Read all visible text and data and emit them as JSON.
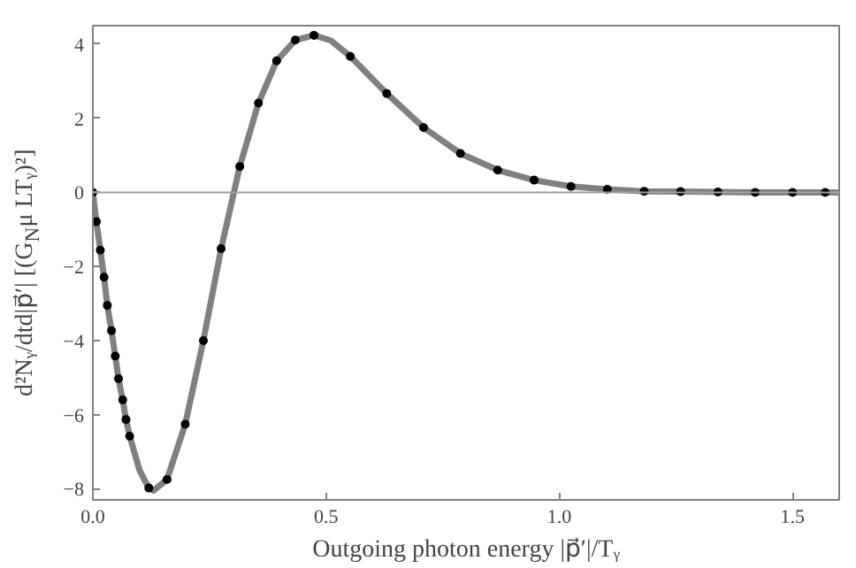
{
  "chart_data": {
    "type": "line",
    "xlabel": "Outgoing photon energy |p⃗′|/Tᵧ",
    "ylabel": "d²Nᵧ/dtd|p⃗′|   [(G$_{N}$μ LTᵧ)²]",
    "xlim": [
      0,
      1.6
    ],
    "ylim": [
      -8.3,
      4.5
    ],
    "xticks": [
      {
        "value": 0,
        "label": "0.0"
      },
      0.5,
      {
        "value": 1,
        "label": "1.0"
      },
      1.5
    ],
    "yticks": [
      -8,
      -6,
      -4,
      -2,
      0,
      2,
      4
    ],
    "grid": false,
    "ref_lines": [
      {
        "axis": "y",
        "value": 0,
        "label": null,
        "color": "#a0a0a0"
      }
    ],
    "series": [
      {
        "type": "line",
        "color": "#808080",
        "marker": "none",
        "line_style": "solid",
        "x": [
          0,
          0.0075,
          0.016,
          0.024,
          0.031,
          0.04,
          0.048,
          0.055,
          0.064,
          0.071,
          0.079,
          0.1,
          0.12,
          0.13,
          0.159,
          0.198,
          0.237,
          0.275,
          0.315,
          0.355,
          0.394,
          0.434,
          0.474,
          0.51,
          0.552,
          0.63,
          0.709,
          0.788,
          0.868,
          0.946,
          1.025,
          1.103,
          1.182,
          1.26,
          1.34,
          1.42,
          1.5,
          1.6
        ],
        "values": [
          0,
          -0.79,
          -1.56,
          -2.29,
          -3.05,
          -3.73,
          -4.42,
          -5.03,
          -5.6,
          -6.13,
          -6.58,
          -7.5,
          -7.98,
          -8.05,
          -7.75,
          -6.26,
          -4.0,
          -1.52,
          0.7,
          2.41,
          3.55,
          4.11,
          4.24,
          4.1,
          3.67,
          2.67,
          1.75,
          1.05,
          0.6,
          0.33,
          0.16,
          0.08,
          0.03,
          0.02,
          0.01,
          0,
          0,
          0
        ]
      },
      {
        "type": "scatter",
        "color": "#000000",
        "marker": "circle",
        "x": [
          0,
          0.0075,
          0.016,
          0.024,
          0.031,
          0.04,
          0.048,
          0.055,
          0.064,
          0.071,
          0.079,
          0.12,
          0.159,
          0.198,
          0.237,
          0.275,
          0.315,
          0.355,
          0.394,
          0.434,
          0.474,
          0.552,
          0.63,
          0.709,
          0.788,
          0.868,
          0.946,
          1.025,
          1.103,
          1.182,
          1.26,
          1.34,
          1.42,
          1.5,
          1.57
        ],
        "values": [
          0,
          -0.79,
          -1.56,
          -2.29,
          -3.05,
          -3.73,
          -4.42,
          -5.03,
          -5.6,
          -6.13,
          -6.58,
          -7.98,
          -7.75,
          -6.26,
          -4.0,
          -1.52,
          0.7,
          2.41,
          3.55,
          4.11,
          4.24,
          3.67,
          2.67,
          1.75,
          1.05,
          0.6,
          0.33,
          0.16,
          0.08,
          0.03,
          0.02,
          0.01,
          0,
          0,
          0
        ]
      }
    ]
  }
}
